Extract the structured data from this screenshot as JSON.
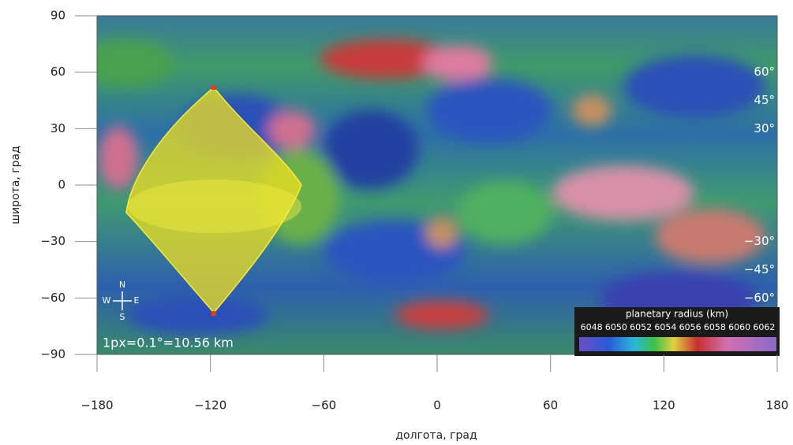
{
  "map": {
    "x_label": "долгота, град",
    "y_label": "широта, град",
    "xlim": [
      -180,
      180
    ],
    "ylim": [
      -90,
      90
    ],
    "xticks": [
      {
        "value": -180,
        "label": "−180"
      },
      {
        "value": -120,
        "label": "−120"
      },
      {
        "value": -60,
        "label": "−60"
      },
      0,
      60,
      120,
      180
    ],
    "yticks": [
      {
        "value": -90,
        "label": "−90"
      },
      {
        "value": -60,
        "label": "−60"
      },
      {
        "value": -30,
        "label": "−30"
      },
      0,
      30,
      60,
      90
    ],
    "latitude_labels": [
      {
        "value": 60,
        "label": "60°"
      },
      {
        "value": 45,
        "label": "45°"
      },
      {
        "value": 30,
        "label": "30°"
      },
      {
        "value": -30,
        "label": "−30°"
      },
      {
        "value": -45,
        "label": "−45°"
      },
      {
        "value": -60,
        "label": "−60°"
      }
    ],
    "scale": "1px=0.1°=10.56 km",
    "compass": {
      "n": "N",
      "s": "S",
      "w": "W",
      "e": "E"
    },
    "legend": {
      "title": "planetary radius (km)",
      "ticks": [
        6048,
        6050,
        6052,
        6054,
        6056,
        6058,
        6060,
        6062
      ]
    }
  }
}
